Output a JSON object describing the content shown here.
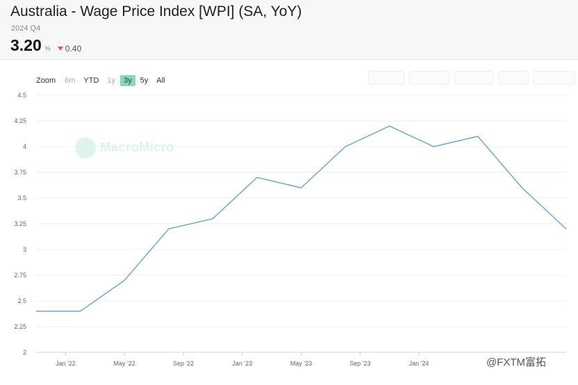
{
  "header": {
    "title": "Australia - Wage Price Index [WPI] (SA, YoY)",
    "period": "2024 Q4",
    "value": "3.20",
    "unit": "%",
    "change": "0.40"
  },
  "zoom": {
    "label": "Zoom",
    "options": [
      "6m",
      "YTD",
      "1y",
      "3y",
      "5y",
      "All"
    ],
    "active": "3y"
  },
  "watermark": "MacroMicro",
  "footer_mark": "@FXTM富拓",
  "colors": {
    "line": "#7aaec4",
    "accent": "#8ad4c1",
    "down": "#e0565b"
  },
  "chart_data": {
    "type": "line",
    "x": [
      "2021-Q4",
      "2022-Q1",
      "2022-Q2",
      "2022-Q3",
      "2022-Q4",
      "2023-Q1",
      "2023-Q2",
      "2023-Q3",
      "2023-Q4",
      "2024-Q1",
      "2024-Q2",
      "2024-Q3",
      "2024-Q4"
    ],
    "series": [
      {
        "values": [
          2.4,
          2.4,
          2.7,
          3.2,
          3.3,
          3.7,
          3.6,
          4.0,
          4.2,
          4.0,
          4.1,
          3.6,
          3.2
        ]
      }
    ],
    "xticks": [
      "Jan '22",
      "May '22",
      "Sep '22",
      "Jan '23",
      "May '23",
      "Sep '23",
      "Jan '24"
    ],
    "yticks": [
      "2",
      "2.25",
      "2.5",
      "2.75",
      "3",
      "3.25",
      "3.5",
      "3.75",
      "4",
      "4.25",
      "4.5"
    ],
    "ylim": [
      2,
      4.5
    ],
    "grid": true
  }
}
